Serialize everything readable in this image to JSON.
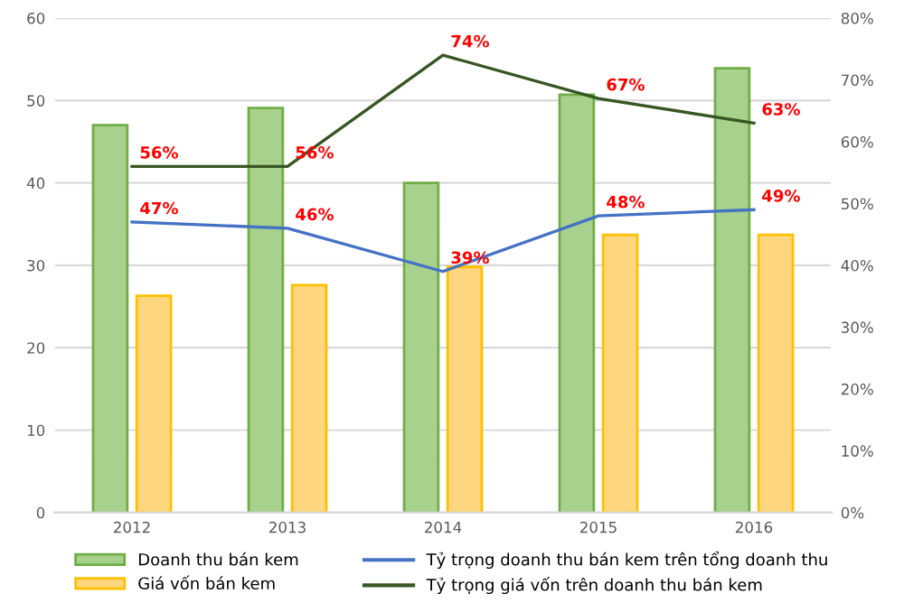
{
  "chart_data": {
    "type": "bar",
    "categories": [
      "2012",
      "2013",
      "2014",
      "2015",
      "2016"
    ],
    "series": [
      {
        "name": "Doanh thu bán kem",
        "color": "#a9d18e",
        "values": [
          47.0,
          49.1,
          40.0,
          50.7,
          53.9
        ]
      },
      {
        "name": "Giá vốn bán kem",
        "color": "#ffd680",
        "values": [
          26.3,
          27.6,
          29.8,
          33.7,
          33.7
        ]
      },
      {
        "name": "Tỷ trọng doanh thu bán kem trên tổng doanh thu",
        "type": "line",
        "axis": "y2",
        "color": "#4472c4",
        "values": [
          47,
          46,
          39,
          48,
          49
        ],
        "value_labels": [
          "47%",
          "46%",
          "39%",
          "48%",
          "49%"
        ]
      },
      {
        "name": "Tỷ trọng giá vốn trên doanh thu bán kem",
        "type": "line",
        "axis": "y2",
        "color": "#375623",
        "values": [
          56,
          56,
          74,
          67,
          63
        ],
        "value_labels": [
          "56%",
          "56%",
          "74%",
          "67%",
          "63%"
        ]
      }
    ],
    "ylim": [
      0,
      60
    ],
    "yticks": [
      0,
      10,
      20,
      30,
      40,
      50,
      60
    ],
    "y2lim": [
      0,
      80
    ],
    "y2ticks": [
      {
        "value": 0,
        "label": "0%"
      },
      {
        "value": 10,
        "label": "10%"
      },
      {
        "value": 20,
        "label": "20%"
      },
      {
        "value": 30,
        "label": "30%"
      },
      {
        "value": 40,
        "label": "40%"
      },
      {
        "value": 50,
        "label": "50%"
      },
      {
        "value": 60,
        "label": "60%"
      },
      {
        "value": 70,
        "label": "70%"
      },
      {
        "value": 80,
        "label": "80%"
      }
    ],
    "grid": "y",
    "legend": "bottom",
    "marker": "none"
  }
}
